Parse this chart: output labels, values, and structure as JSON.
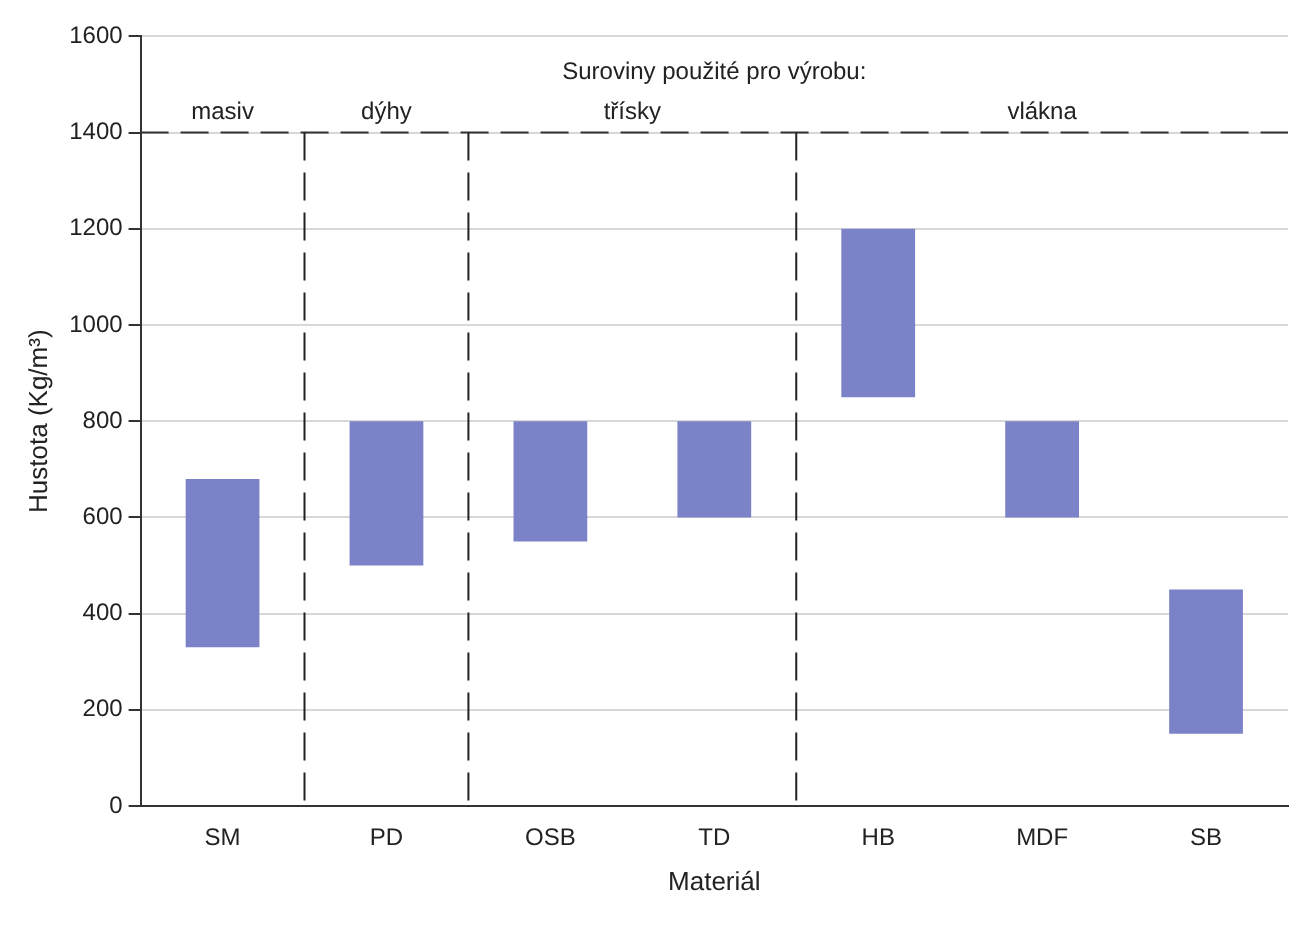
{
  "chart_data": {
    "type": "bar",
    "categories": [
      "SM",
      "PD",
      "OSB",
      "TD",
      "HB",
      "MDF",
      "SB"
    ],
    "values": [
      350,
      300,
      250,
      200,
      350,
      200,
      300
    ],
    "base": [
      330,
      500,
      550,
      600,
      850,
      600,
      150
    ],
    "color": "#7c82c8",
    "ylim": [
      0,
      1600
    ],
    "yticks": [
      0,
      200,
      400,
      600,
      800,
      1000,
      1200,
      1400,
      1600
    ],
    "xlabel": "Materiál",
    "ylabel": "Hustota (Kg/m³)",
    "grid": "y",
    "ref_lines": [
      {
        "axis": "y",
        "value": 1400,
        "color": "#333333",
        "line_style": "dashed"
      }
    ],
    "annotations": [
      "Suroviny použité pro výrobu:",
      "masiv",
      "dýhy",
      "třísky",
      "vlákna"
    ]
  }
}
